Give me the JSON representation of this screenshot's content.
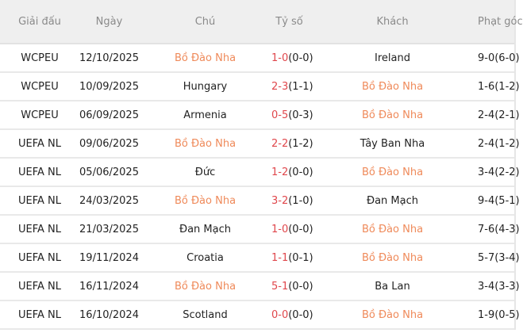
{
  "colors": {
    "highlight": "#ef8a5a",
    "score": "#e0474c",
    "header_bg": "#efefef"
  },
  "header": {
    "league": "Giải đấu",
    "date": "Ngày",
    "home": "Chú",
    "score": "Tỷ số",
    "away": "Khách",
    "corners": "Phạt góc"
  },
  "rows": [
    {
      "league": "WCPEU",
      "date": "12/10/2025",
      "home": "Bồ Đào Nha",
      "ft": "1-0",
      "ht": "(0-0)",
      "away": "Ireland",
      "corners": "9-0(6-0)",
      "hl": "home"
    },
    {
      "league": "WCPEU",
      "date": "10/09/2025",
      "home": "Hungary",
      "ft": "2-3",
      "ht": "(1-1)",
      "away": "Bồ Đào Nha",
      "corners": "1-6(1-2)",
      "hl": "away"
    },
    {
      "league": "WCPEU",
      "date": "06/09/2025",
      "home": "Armenia",
      "ft": "0-5",
      "ht": "(0-3)",
      "away": "Bồ Đào Nha",
      "corners": "2-4(2-1)",
      "hl": "away"
    },
    {
      "league": "UEFA NL",
      "date": "09/06/2025",
      "home": "Bồ Đào Nha",
      "ft": "2-2",
      "ht": "(1-2)",
      "away": "Tây Ban Nha",
      "corners": "2-4(1-2)",
      "hl": "home"
    },
    {
      "league": "UEFA NL",
      "date": "05/06/2025",
      "home": "Đức",
      "ft": "1-2",
      "ht": "(0-0)",
      "away": "Bồ Đào Nha",
      "corners": "3-4(2-2)",
      "hl": "away"
    },
    {
      "league": "UEFA NL",
      "date": "24/03/2025",
      "home": "Bồ Đào Nha",
      "ft": "3-2",
      "ht": "(1-0)",
      "away": "Đan Mạch",
      "corners": "9-4(5-1)",
      "hl": "home"
    },
    {
      "league": "UEFA NL",
      "date": "21/03/2025",
      "home": "Đan Mạch",
      "ft": "1-0",
      "ht": "(0-0)",
      "away": "Bồ Đào Nha",
      "corners": "7-6(4-3)",
      "hl": "away"
    },
    {
      "league": "UEFA NL",
      "date": "19/11/2024",
      "home": "Croatia",
      "ft": "1-1",
      "ht": "(0-1)",
      "away": "Bồ Đào Nha",
      "corners": "5-7(3-4)",
      "hl": "away"
    },
    {
      "league": "UEFA NL",
      "date": "16/11/2024",
      "home": "Bồ Đào Nha",
      "ft": "5-1",
      "ht": "(0-0)",
      "away": "Ba Lan",
      "corners": "3-4(3-3)",
      "hl": "home"
    },
    {
      "league": "UEFA NL",
      "date": "16/10/2024",
      "home": "Scotland",
      "ft": "0-0",
      "ht": "(0-0)",
      "away": "Bồ Đào Nha",
      "corners": "1-9(0-5)",
      "hl": "away"
    }
  ]
}
